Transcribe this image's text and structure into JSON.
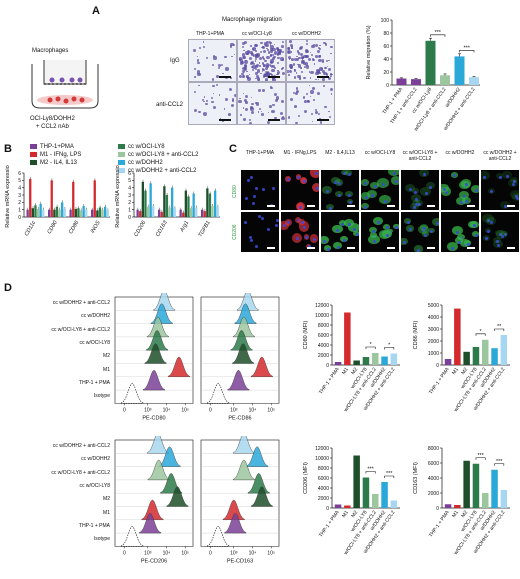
{
  "colors": {
    "thp1_pma": "#7b3f97",
    "m1": "#d42a2e",
    "m2": "#1f4f2a",
    "ocily8": "#2d7a4a",
    "ocily8_anti": "#9cc79e",
    "dohh2": "#2aa8d8",
    "dohh2_anti": "#a7d7f0",
    "isotype": "#777777",
    "overlay_red": "#d8323c",
    "overlay_green": "#37b34a",
    "overlay_blue": "#3a4ad8"
  },
  "panelA": {
    "label": "A",
    "schematic_title": "Macrophages",
    "schematic_sub1": "OCI-Ly8/DOHH2",
    "schematic_sub2": "+ CCL2 nAb",
    "micro_header": "Macrophage migration",
    "cols": [
      "THP-1+PMA",
      "cc w/OCI-Ly8",
      "cc w/DOHH2"
    ],
    "rows": [
      "IgG",
      "anti-CCL2"
    ],
    "chart_ylabel": "Relative migration (%)",
    "chart_sig": [
      "***",
      "***"
    ],
    "chart_xlabels": [
      "THP-1 + PMA",
      "THP-1 + anti-CCL2",
      "cc w/OCI-Ly8",
      "w/OCI-Ly8 + anti-CCL2",
      "w/DOHH2",
      "w/DOHH2 + anti-CCL2"
    ]
  },
  "chart_data": [
    {
      "type": "bar",
      "ylabel": "Relative migration (%)",
      "ylim": [
        0,
        100
      ],
      "yticks": [
        "0",
        "20",
        "40",
        "60",
        "80",
        "100"
      ],
      "categories": [
        "THP-1 + PMA",
        "THP-1 + anti-CCL2",
        "cc w/OCI-Ly8",
        "w/OCI-Ly8 + anti-CCL2",
        "w/DOHH2",
        "w/DOHH2 + anti-CCL2"
      ],
      "values": [
        10,
        9,
        68,
        15,
        44,
        12
      ],
      "errors": [
        1,
        1,
        4,
        2,
        4,
        1
      ]
    },
    {
      "type": "bar",
      "ylabel": "Relative mRNA expression",
      "ylim": [
        0,
        6
      ],
      "yticks": [
        "0",
        "1",
        "2",
        "3",
        "4",
        "5",
        "6"
      ],
      "categories": [
        "CD11c",
        "CD80",
        "CD86",
        "iNOS"
      ],
      "series": [
        {
          "name": "THP-1+PMA",
          "values": [
            1,
            1,
            1,
            1
          ]
        },
        {
          "name": "M1 - IFNg, LPS",
          "values": [
            5.2,
            5.0,
            4.8,
            5.0
          ]
        },
        {
          "name": "M2 - IL4, IL13",
          "values": [
            1.2,
            1.0,
            1.1,
            0.9
          ]
        },
        {
          "name": "cc w/OCI-LY8",
          "values": [
            1.6,
            1.4,
            1.2,
            1.3
          ]
        },
        {
          "name": "cc w/OCI-LY8 + anti-CCL2",
          "values": [
            1.1,
            1.0,
            0.9,
            1.0
          ]
        },
        {
          "name": "cc w/DOHH2",
          "values": [
            1.8,
            2.0,
            1.5,
            1.4
          ]
        },
        {
          "name": "cc w/DOHH2 + anti-CCL2",
          "values": [
            1.0,
            1.1,
            1.0,
            0.9
          ]
        }
      ]
    },
    {
      "type": "bar",
      "ylabel": "Relative mRNA expression",
      "ylim": [
        0,
        6
      ],
      "yticks": [
        "0",
        "1",
        "2",
        "3",
        "4",
        "5",
        "6"
      ],
      "categories": [
        "CD206",
        "CD163",
        "Arg1",
        "TGFB1"
      ],
      "series": [
        {
          "name": "THP-1+PMA",
          "values": [
            1,
            1,
            1,
            1
          ]
        },
        {
          "name": "M1 - IFNg, LPS",
          "values": [
            0.8,
            0.7,
            0.6,
            0.8
          ]
        },
        {
          "name": "M2 - IL4, IL13",
          "values": [
            4.8,
            4.2,
            3.6,
            3.9
          ]
        },
        {
          "name": "cc w/OCI-LY8",
          "values": [
            3.6,
            3.0,
            2.8,
            3.2
          ]
        },
        {
          "name": "cc w/OCI-LY8 + anti-CCL2",
          "values": [
            1.4,
            1.3,
            1.2,
            1.5
          ]
        },
        {
          "name": "cc w/DOHH2",
          "values": [
            4.6,
            4.0,
            3.2,
            3.6
          ]
        },
        {
          "name": "cc w/DOHH2 + anti-CCL2",
          "values": [
            1.5,
            1.2,
            1.3,
            1.4
          ]
        }
      ]
    },
    {
      "type": "bar",
      "ylabel": "CD80 (MFI)",
      "ylim": [
        0,
        12000
      ],
      "yticks": [
        "0",
        "2000",
        "4000",
        "6000",
        "8000",
        "10000",
        "12000"
      ],
      "categories": [
        "THP-1 + PMA",
        "M1",
        "M2",
        "w/OCI-LY8",
        "w/OCI-LY8 + anti-CCL2",
        "w/DOHH2",
        "w/DOHH2 + anti-CCL2"
      ],
      "values": [
        600,
        10500,
        900,
        1600,
        2400,
        1700,
        2300
      ],
      "sig": [
        "*",
        "*"
      ]
    },
    {
      "type": "bar",
      "ylabel": "CD86 (MFI)",
      "ylim": [
        0,
        5000
      ],
      "yticks": [
        "0",
        "1000",
        "2000",
        "3000",
        "4000",
        "5000"
      ],
      "categories": [
        "THP-1 + PMA",
        "M1",
        "M2",
        "w/OCI-LY8",
        "w/OCI-LY8 + anti-CCL2",
        "w/DOHH2",
        "w/DOHH2 + anti-CCL2"
      ],
      "values": [
        500,
        4700,
        1100,
        1500,
        2100,
        1400,
        2500
      ],
      "sig": [
        "*",
        "**"
      ]
    },
    {
      "type": "bar",
      "ylabel": "CD206 (MFI)",
      "ylim": [
        0,
        12000
      ],
      "yticks": [
        "0",
        "2000",
        "4000",
        "6000",
        "8000",
        "10000",
        "12000"
      ],
      "categories": [
        "THP-1 + PMA",
        "M1",
        "M2",
        "w/OCI-LY8",
        "w/OCI-LY8 + anti-CCL2",
        "w/DOHH2",
        "w/DOHH2 + anti-CCL2"
      ],
      "values": [
        700,
        500,
        10500,
        6100,
        2800,
        5200,
        1500
      ],
      "sig": [
        "***",
        "***"
      ]
    },
    {
      "type": "bar",
      "ylabel": "CD163 (MFI)",
      "ylim": [
        0,
        8000
      ],
      "yticks": [
        "0",
        "2000",
        "4000",
        "6000",
        "8000"
      ],
      "categories": [
        "THP-1 + PMA",
        "M1",
        "M2",
        "w/OCI-LY8",
        "w/OCI-LY8 + anti-CCL2",
        "w/DOHH2",
        "w/DOHH2 + anti-CCL2"
      ],
      "values": [
        500,
        400,
        6300,
        5900,
        2000,
        5100,
        2400
      ],
      "sig": [
        "***",
        "***"
      ]
    }
  ],
  "panelB": {
    "label": "B",
    "legend": [
      "THP-1+PMA",
      "M1 - IFNg, LPS",
      "M2 - IL4, IL13",
      "cc w/OCI-LY8",
      "cc w/OCI-LY8 + anti-CCL2",
      "cc w/DOHH2",
      "cc w/DOHH2 + anti-CCL2"
    ]
  },
  "panelC": {
    "label": "C",
    "cols": [
      "THP-1+PMA",
      "M1 - IFNg,LPS",
      "M2 - IL4,IL13",
      "cc w/OCI-LY8",
      "cc w/OCI-LY8 + anti-CCL2",
      "cc w/DOHH2",
      "cc w/DOHH2 + anti-CCL2"
    ],
    "rows": [
      "CD80",
      "CD206"
    ]
  },
  "panelD": {
    "label": "D",
    "hist_rows": [
      "cc w/DOHH2 + anti-CCL2",
      "cc w/DOHH2",
      "cc w/OCI-LY8 + anti-CCL2",
      "cc w/OCI-LY8",
      "M2",
      "M1",
      "THP-1 + PMA",
      "Isotype"
    ],
    "axis_ticks": [
      "0",
      "10³",
      "10⁴",
      "10⁵"
    ],
    "hist_xlabels": [
      "PE-CD80",
      "PE-CD86",
      "PE-CD206",
      "PE-CD163"
    ],
    "mfi_xlabels": [
      "THP-1 + PMA",
      "M1",
      "M2",
      "w/OCI-LY8",
      "w/OCI-LY8 + anti-CCL2",
      "w/DOHH2",
      "w/DOHH2 + anti-CCL2"
    ]
  }
}
